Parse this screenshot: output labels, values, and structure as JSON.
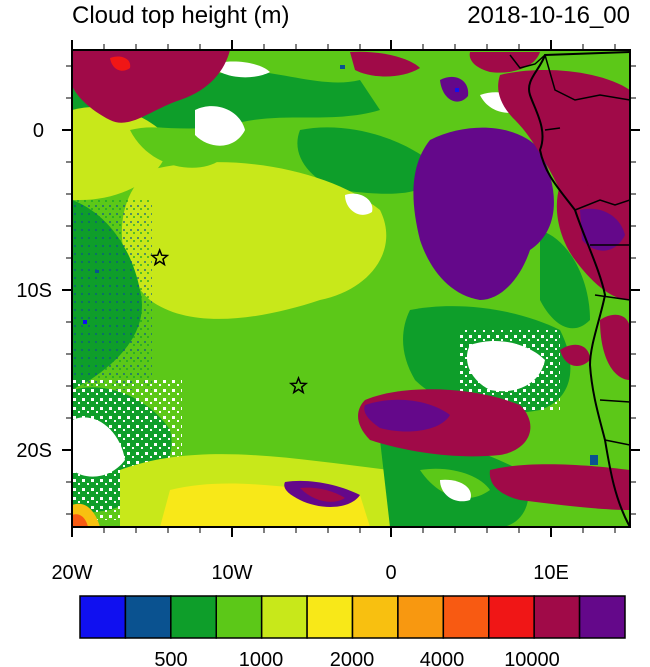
{
  "title": "Cloud top height (m)",
  "datetime": "2018-10-16_00",
  "axes": {
    "lon_labels": [
      "20W",
      "10W",
      "0",
      "10E"
    ],
    "lat_labels": [
      "0",
      "10S",
      "20S"
    ]
  },
  "colorbar": {
    "colors": [
      "#1010f0",
      "#0a5290",
      "#0e9e2a",
      "#5cc818",
      "#c8e81a",
      "#f8e818",
      "#f8c010",
      "#f89810",
      "#f85a12",
      "#f01616",
      "#a00a48",
      "#64088a"
    ],
    "tick_labels": [
      "500",
      "1000",
      "2000",
      "4000",
      "10000"
    ]
  },
  "markers": [
    {
      "name": "station-star",
      "lon": -14.5,
      "lat": -8
    },
    {
      "name": "station-star",
      "lon": -5.8,
      "lat": -16
    }
  ]
}
